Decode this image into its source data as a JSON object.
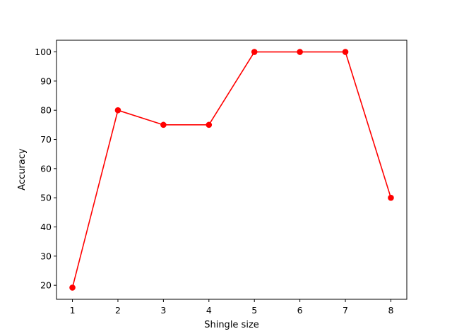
{
  "chart_data": {
    "type": "line",
    "title": "",
    "xlabel": "Shingle size",
    "ylabel": "Accuracy",
    "x": [
      1,
      2,
      3,
      4,
      5,
      6,
      7,
      8
    ],
    "series": [
      {
        "values": [
          19.2,
          80,
          75,
          75,
          100,
          100,
          100,
          50
        ],
        "color": "#ff0000",
        "marker": "circle"
      }
    ],
    "xlim": [
      0.65,
      8.35
    ],
    "ylim": [
      15.2,
      104.0
    ],
    "xticks": [
      1,
      2,
      3,
      4,
      5,
      6,
      7,
      8
    ],
    "yticks": [
      20,
      30,
      40,
      50,
      60,
      70,
      80,
      90,
      100
    ],
    "grid": false,
    "legend": "none"
  }
}
